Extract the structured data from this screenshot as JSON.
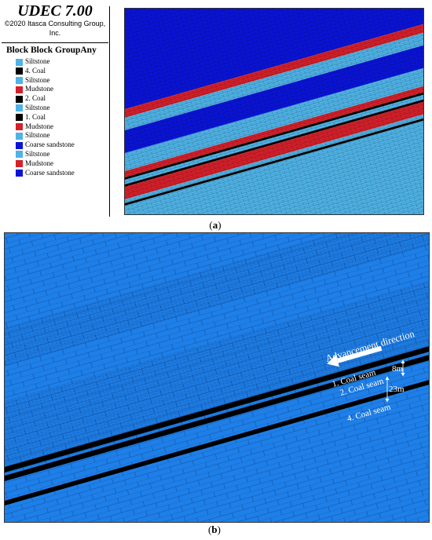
{
  "panel_a": {
    "app_title": "UDEC 7.00",
    "copyright": "©2020 Itasca Consulting Group, Inc.",
    "legend_title": "Block Block GroupAny",
    "legend": [
      {
        "label": "Siltstone",
        "color": "#4fb3e6"
      },
      {
        "label": "4. Coal",
        "color": "#000000"
      },
      {
        "label": "Siltstone",
        "color": "#4fb3e6"
      },
      {
        "label": "Mudstone",
        "color": "#d4202a"
      },
      {
        "label": "2. Coal",
        "color": "#000000"
      },
      {
        "label": "Siltstone",
        "color": "#4fb3e6"
      },
      {
        "label": "1. Coal",
        "color": "#000000"
      },
      {
        "label": "Mudstone",
        "color": "#d4202a"
      },
      {
        "label": "Siltstone",
        "color": "#4fb3e6"
      },
      {
        "label": "Coarse sandstone",
        "color": "#0a14d8"
      },
      {
        "label": "Siltstone",
        "color": "#4fb3e6"
      },
      {
        "label": "Mudstone",
        "color": "#d4202a"
      },
      {
        "label": "Coarse sandstone",
        "color": "#0a14d8"
      }
    ],
    "caption_letter": "a"
  },
  "panel_b": {
    "advancement_label": "Advancement direction",
    "seams": [
      "1. Coal seam",
      "2. Coal seam",
      "4. Coal seam"
    ],
    "spacing_labels": [
      "8m",
      "23m"
    ],
    "caption_letter": "b",
    "model_color": "#1e7fe8"
  }
}
